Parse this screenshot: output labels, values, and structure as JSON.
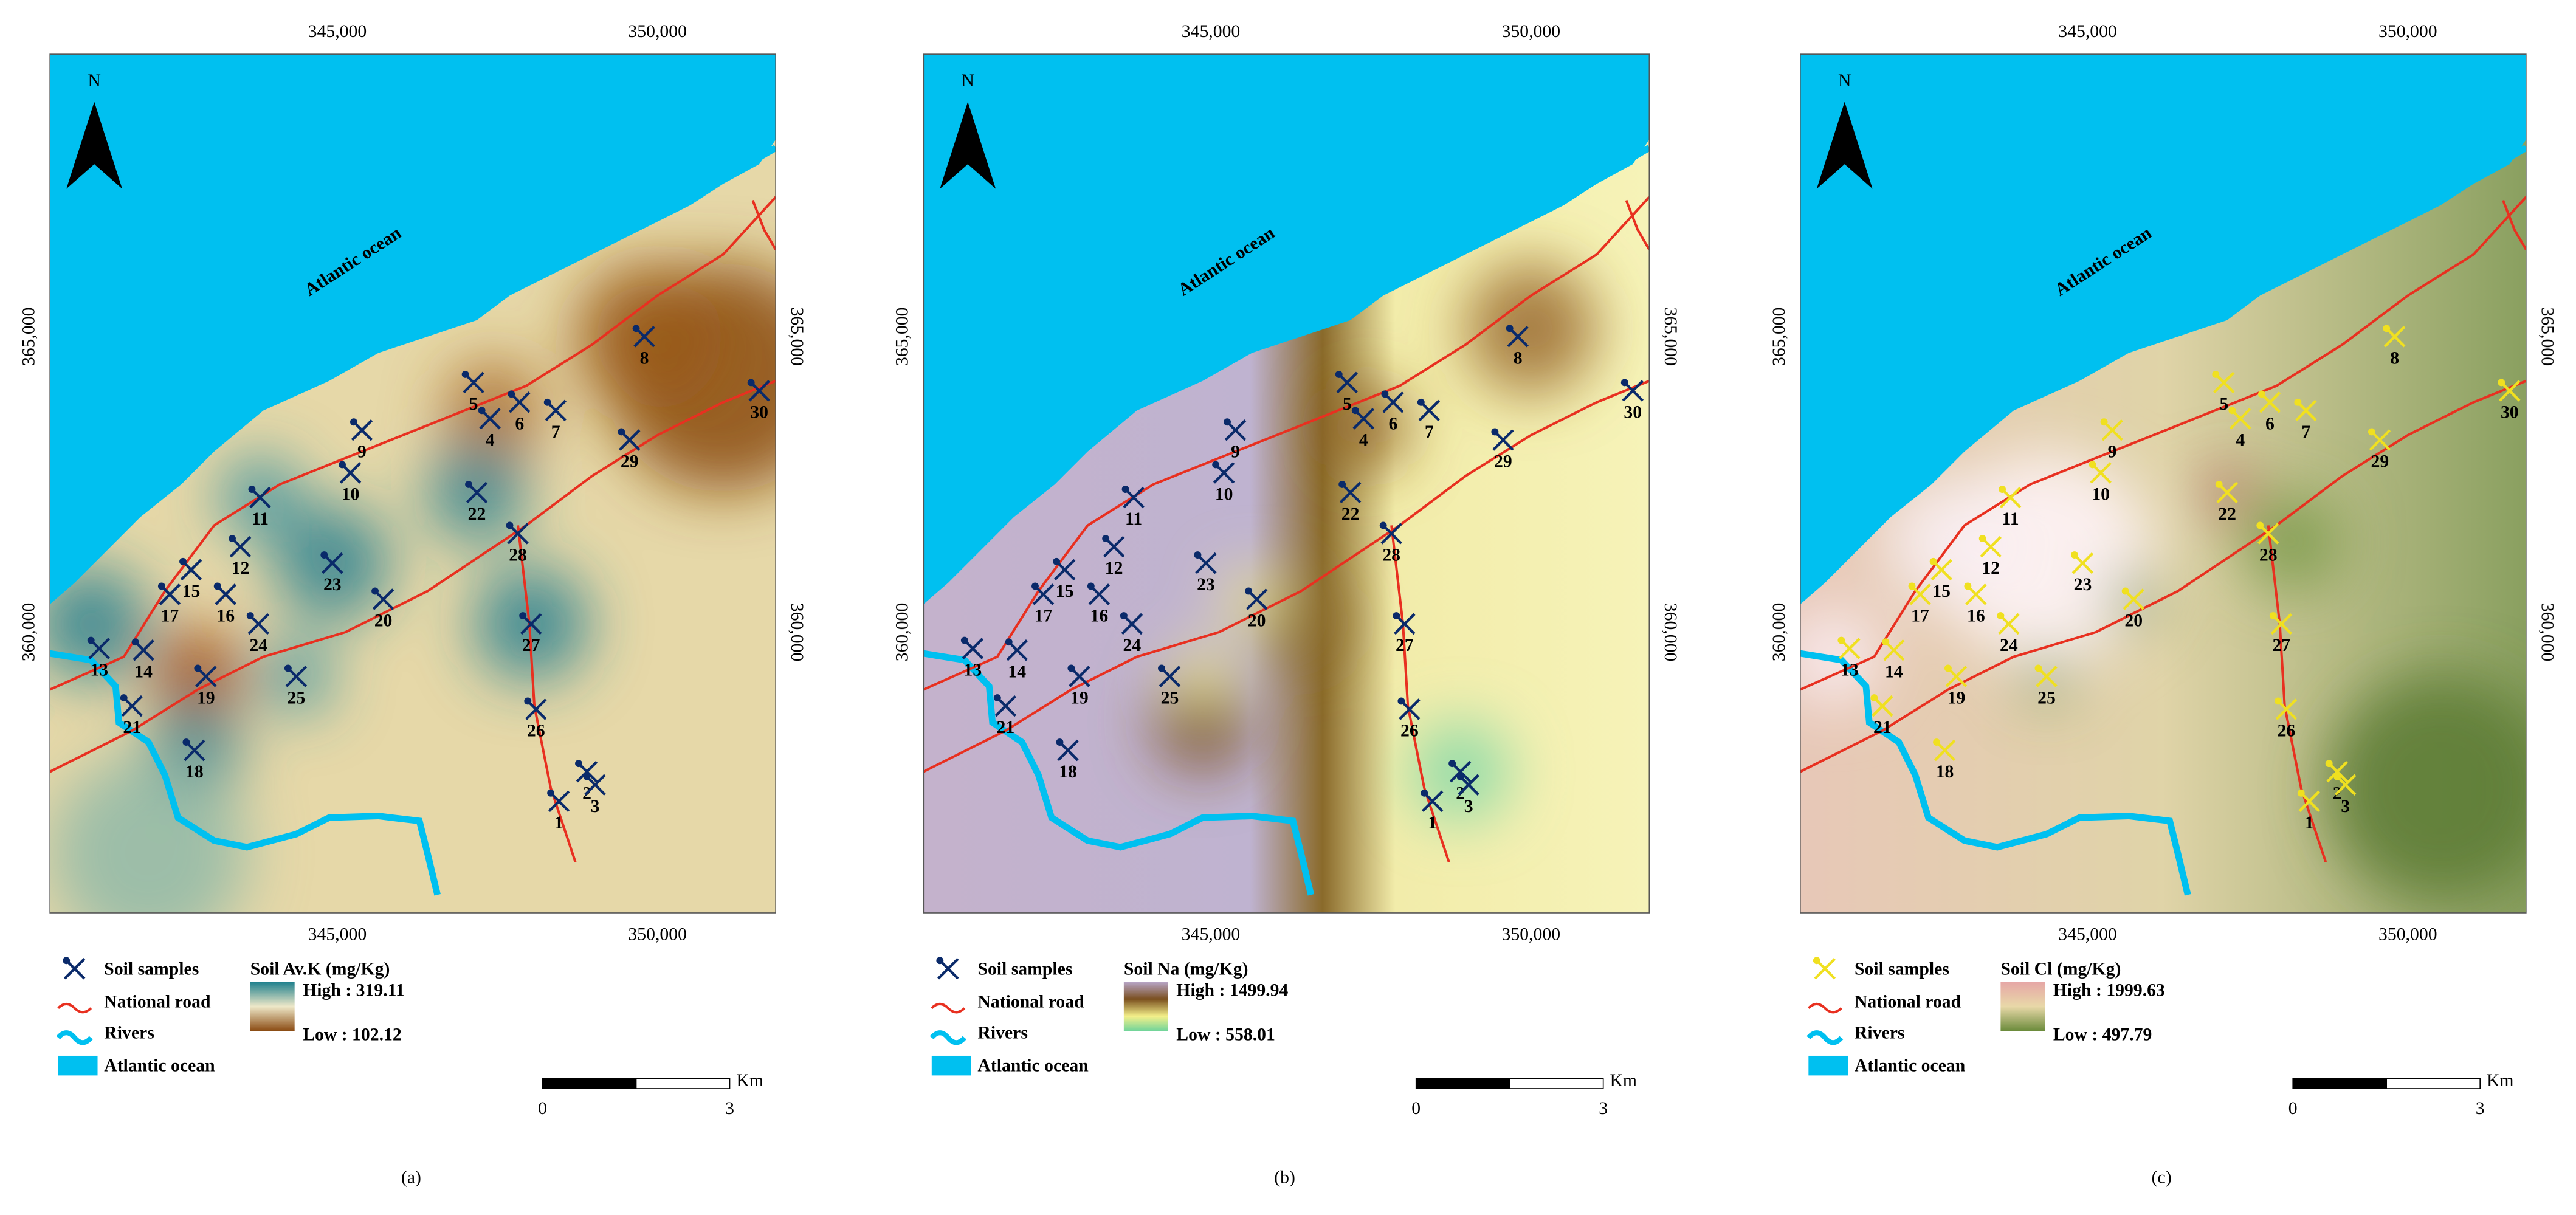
{
  "panels": [
    {
      "label": "(a)",
      "north": "N",
      "ocean_label": "Atlantic ocean",
      "x_ticks": [
        "345,000",
        "350,000"
      ],
      "y_ticks": [
        "365,000",
        "360,000"
      ],
      "samples": [
        "1",
        "2",
        "3",
        "4",
        "5",
        "6",
        "7",
        "8",
        "9",
        "10",
        "11",
        "12",
        "13",
        "14",
        "15",
        "16",
        "17",
        "18",
        "19",
        "20",
        "21",
        "22",
        "23",
        "24",
        "25",
        "26",
        "27",
        "28",
        "29",
        "30"
      ],
      "legend": {
        "samples": "Soil samples",
        "road": "National road",
        "rivers": "Rivers",
        "ocean": "Atlantic ocean",
        "variable": "Soil Av.K (mg/Kg)",
        "high": "High : 319.11",
        "low": "Low : 102.12"
      },
      "scale": {
        "start": "0",
        "end": "3",
        "unit": "Km"
      }
    },
    {
      "label": "(b)",
      "north": "N",
      "ocean_label": "Atlantic ocean",
      "x_ticks": [
        "345,000",
        "350,000"
      ],
      "y_ticks": [
        "365,000",
        "360,000"
      ],
      "samples": [
        "1",
        "2",
        "3",
        "4",
        "5",
        "6",
        "7",
        "8",
        "9",
        "10",
        "11",
        "12",
        "13",
        "14",
        "15",
        "16",
        "17",
        "18",
        "19",
        "20",
        "21",
        "22",
        "23",
        "24",
        "25",
        "26",
        "27",
        "28",
        "29",
        "30"
      ],
      "legend": {
        "samples": "Soil samples",
        "road": "National road",
        "rivers": "Rivers",
        "ocean": "Atlantic ocean",
        "variable": "Soil Na (mg/Kg)",
        "high": "High : 1499.94",
        "low": "Low : 558.01"
      },
      "scale": {
        "start": "0",
        "end": "3",
        "unit": "Km"
      }
    },
    {
      "label": "(c)",
      "north": "N",
      "ocean_label": "Atlantic ocean",
      "x_ticks": [
        "345,000",
        "350,000"
      ],
      "y_ticks": [
        "365,000",
        "360,000"
      ],
      "samples": [
        "1",
        "2",
        "3",
        "4",
        "5",
        "6",
        "7",
        "8",
        "9",
        "10",
        "11",
        "12",
        "13",
        "14",
        "15",
        "16",
        "17",
        "18",
        "19",
        "20",
        "21",
        "22",
        "23",
        "24",
        "25",
        "26",
        "27",
        "28",
        "29",
        "30"
      ],
      "legend": {
        "samples": "Soil samples",
        "road": "National road",
        "rivers": "Rivers",
        "ocean": "Atlantic ocean",
        "variable": "Soil Cl (mg/Kg)",
        "high": "High : 1999.63",
        "low": "Low : 497.79"
      },
      "scale": {
        "start": "0",
        "end": "3",
        "unit": "Km"
      }
    }
  ]
}
